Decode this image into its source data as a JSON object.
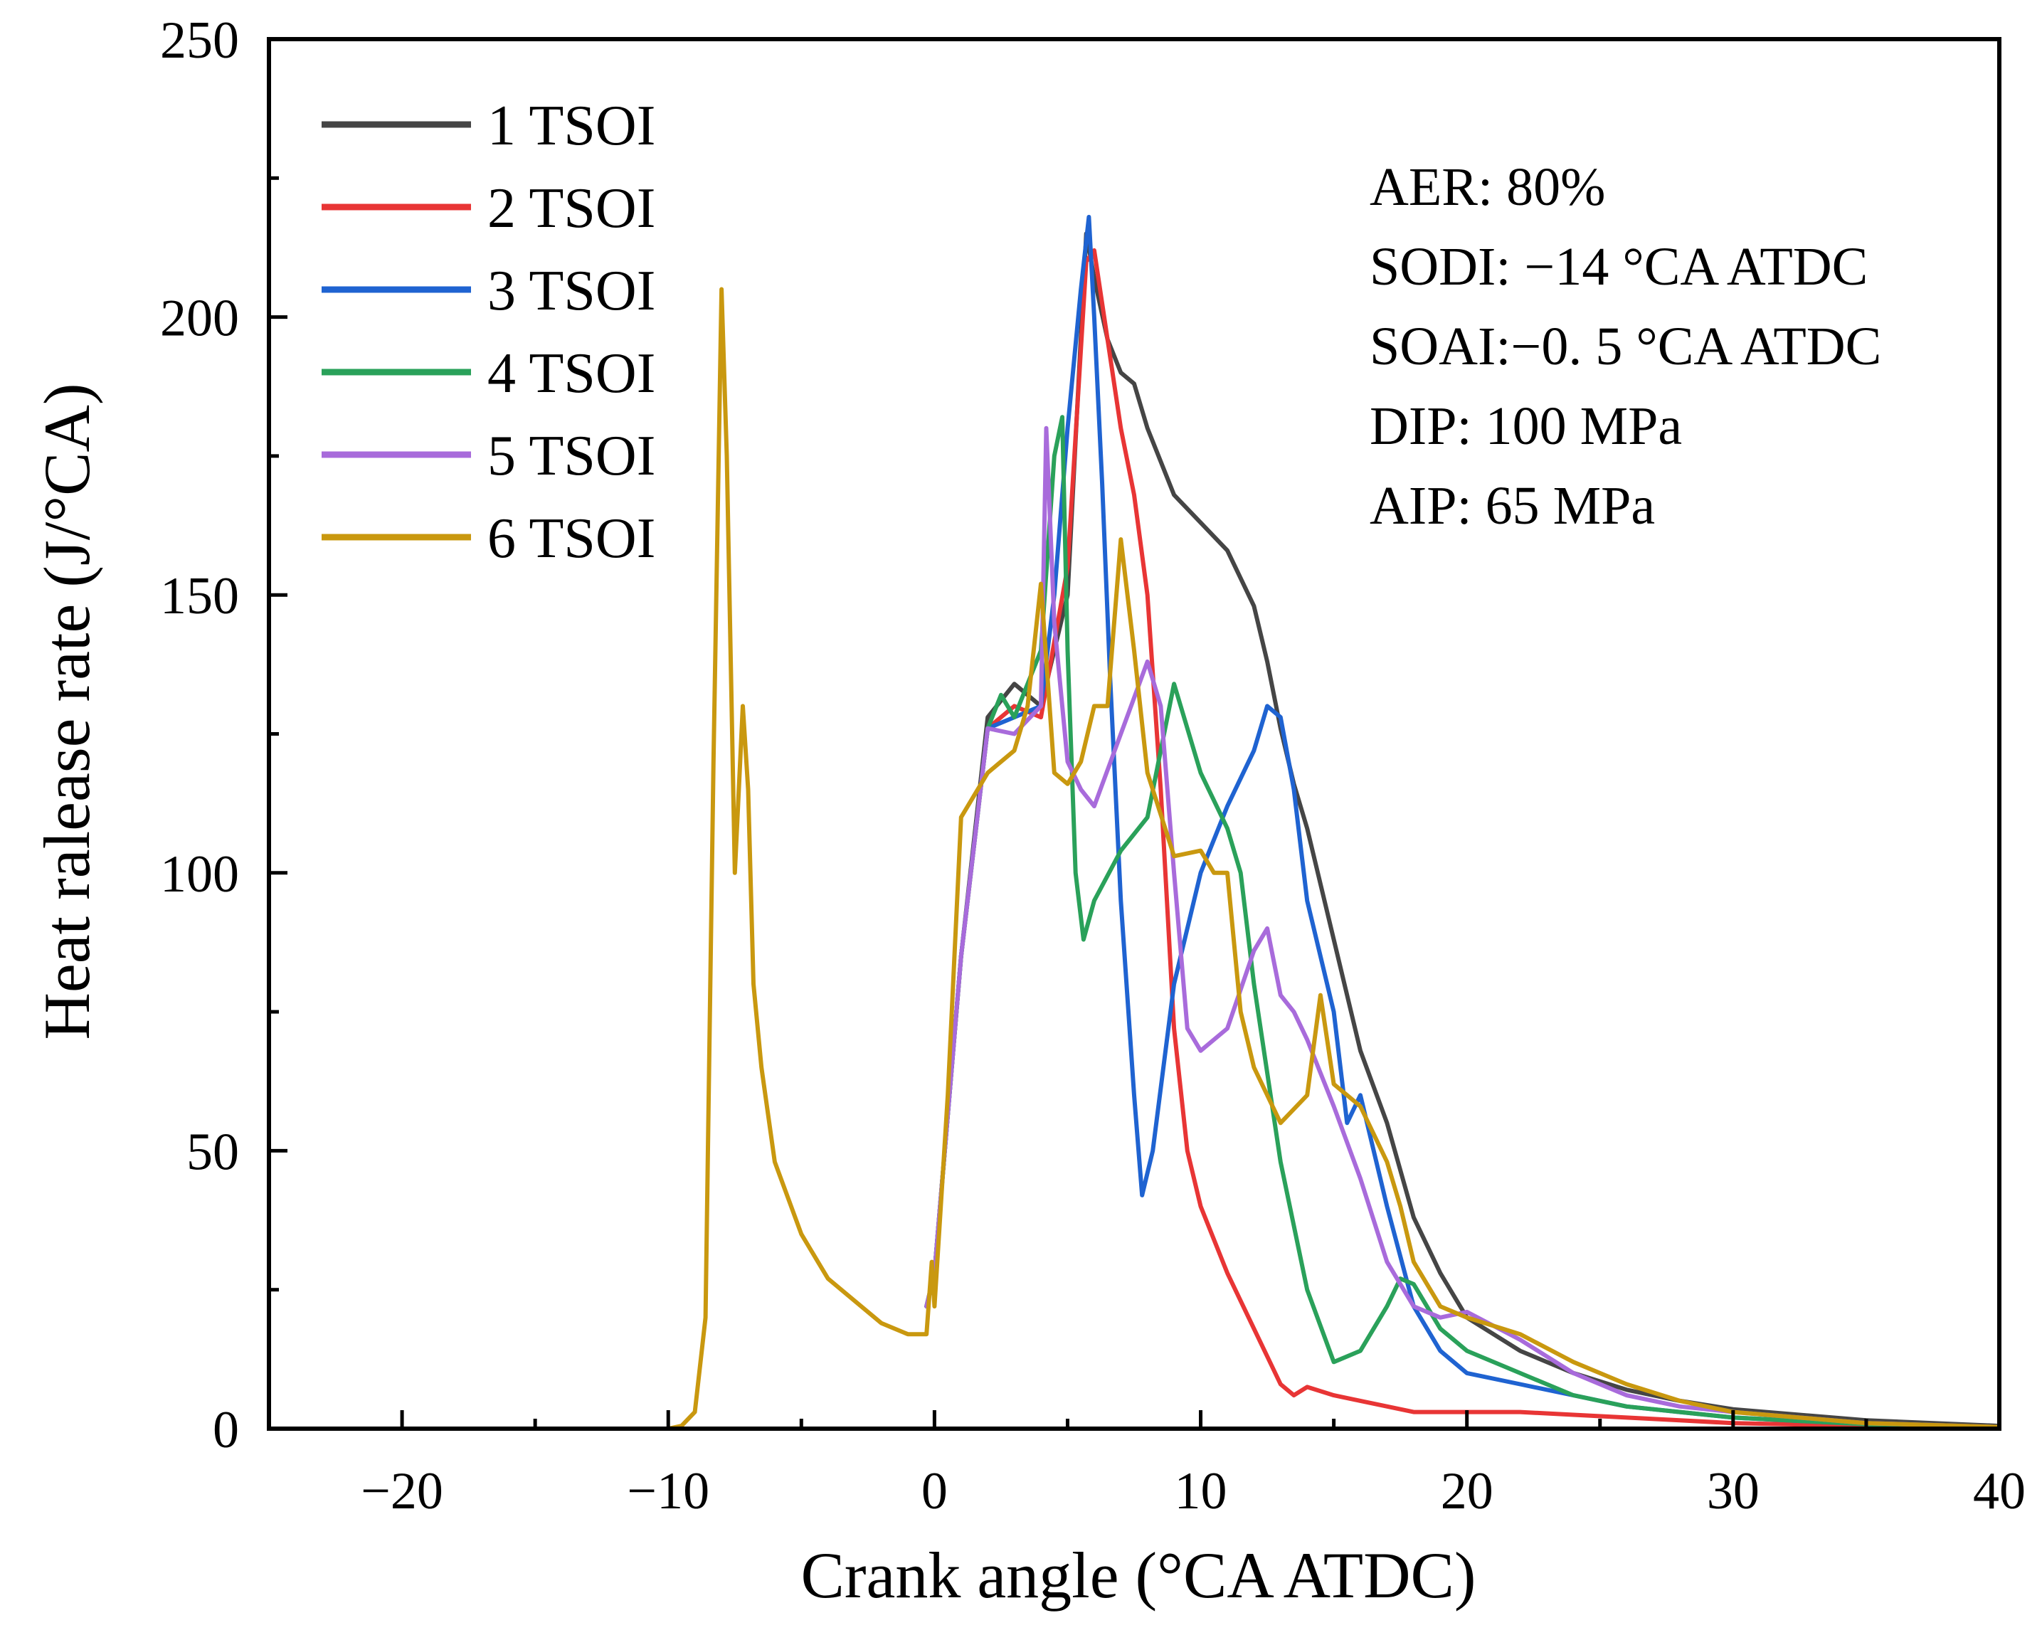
{
  "chart_data": {
    "type": "line",
    "xlabel": "Crank angle (°CA ATDC)",
    "ylabel": "Heat ralease rate (J/°CA)",
    "xlim": [
      -25,
      40
    ],
    "ylim": [
      0,
      250
    ],
    "xticks": [
      -20,
      -10,
      0,
      10,
      20,
      30,
      40
    ],
    "xtick_labels": [
      "−20",
      "−10",
      "0",
      "10",
      "20",
      "30",
      "40"
    ],
    "yticks": [
      0,
      50,
      100,
      150,
      200,
      250
    ],
    "ytick_labels": [
      "0",
      "50",
      "100",
      "150",
      "200",
      "250"
    ],
    "legend_position": "top-left",
    "annotations": [
      "AER: 80%",
      "SODI: −14 °CA ATDC",
      "SOAI:−0. 5 °CA ATDC",
      "DIP: 100 MPa",
      "AIP: 65 MPa"
    ],
    "series": [
      {
        "name": "1 TSOI",
        "color": "#454545",
        "x": [
          -0.3,
          0,
          1,
          2,
          3,
          4,
          5,
          5.7,
          6,
          6.5,
          7,
          7.5,
          8,
          9,
          10,
          11,
          12,
          12.5,
          13,
          13.5,
          14,
          15,
          16,
          17,
          18,
          19,
          20,
          22,
          24,
          26,
          28,
          30,
          35,
          40
        ],
        "y": [
          22,
          28,
          85,
          128,
          134,
          130,
          150,
          215,
          207,
          196,
          190,
          188,
          180,
          168,
          163,
          158,
          148,
          138,
          126,
          116,
          108,
          88,
          68,
          55,
          38,
          28,
          20,
          14,
          10,
          7,
          5,
          3.5,
          1.5,
          0.5
        ]
      },
      {
        "name": "2 TSOI",
        "color": "#e83535",
        "x": [
          -0.3,
          0,
          1,
          2,
          3,
          4,
          5,
          5.7,
          6,
          6.5,
          7,
          7.5,
          8,
          8.5,
          9,
          9.5,
          10,
          11,
          12,
          13,
          13.5,
          14,
          15,
          16,
          18,
          20,
          22,
          24,
          26,
          28,
          30,
          35,
          40
        ],
        "y": [
          22,
          28,
          85,
          126,
          130,
          128,
          155,
          210,
          212,
          196,
          180,
          168,
          150,
          115,
          72,
          50,
          40,
          28,
          18,
          8,
          6,
          7.5,
          6,
          5,
          3,
          3,
          3,
          2.5,
          2,
          1.5,
          1,
          0.5,
          0.2
        ]
      },
      {
        "name": "3 TSOI",
        "color": "#1f63d1",
        "x": [
          -0.3,
          0,
          1,
          2,
          3,
          4,
          4.5,
          5,
          5.5,
          5.8,
          6,
          6.3,
          6.6,
          7,
          7.5,
          7.8,
          8.2,
          9,
          10,
          11,
          12,
          12.5,
          13,
          13.5,
          14,
          15,
          15.5,
          16,
          17,
          18,
          19,
          20,
          22,
          24,
          26,
          28,
          30,
          35,
          40
        ],
        "y": [
          22,
          28,
          85,
          126,
          128,
          130,
          150,
          180,
          205,
          218,
          200,
          170,
          135,
          95,
          60,
          42,
          50,
          80,
          100,
          112,
          122,
          130,
          128,
          115,
          95,
          75,
          55,
          60,
          40,
          22,
          14,
          10,
          8,
          6,
          4,
          3,
          2,
          0.8,
          0.3
        ]
      },
      {
        "name": "4 TSOI",
        "color": "#2aa15a",
        "x": [
          -0.3,
          0,
          1,
          2,
          2.5,
          3,
          4,
          4.5,
          4.8,
          5,
          5.3,
          5.6,
          6,
          7,
          8,
          9,
          10,
          11,
          11.5,
          12,
          13,
          14,
          15,
          16,
          17,
          17.5,
          18,
          19,
          20,
          22,
          24,
          26,
          28,
          30,
          35,
          40
        ],
        "y": [
          22,
          28,
          85,
          126,
          132,
          128,
          140,
          175,
          182,
          140,
          100,
          88,
          95,
          104,
          110,
          134,
          118,
          108,
          100,
          80,
          48,
          25,
          12,
          14,
          22,
          27,
          26,
          18,
          14,
          10,
          6,
          4,
          3,
          2,
          0.8,
          0.3
        ]
      },
      {
        "name": "5 TSOI",
        "color": "#a86bdb",
        "x": [
          -0.3,
          0,
          1,
          2,
          3,
          4,
          4.2,
          4.5,
          5,
          5.5,
          6,
          7,
          8,
          8.5,
          9,
          9.5,
          10,
          11,
          12,
          12.5,
          13,
          13.5,
          14,
          15,
          16,
          17,
          18,
          19,
          20,
          22,
          24,
          26,
          28,
          30,
          35,
          40
        ],
        "y": [
          22,
          28,
          85,
          126,
          125,
          130,
          180,
          145,
          120,
          115,
          112,
          125,
          138,
          130,
          100,
          72,
          68,
          72,
          86,
          90,
          78,
          75,
          70,
          58,
          45,
          30,
          22,
          20,
          21,
          16,
          10,
          6,
          4,
          3,
          1,
          0.3
        ]
      },
      {
        "name": "6 TSOI",
        "color": "#c9980f",
        "x": [
          -25,
          -10,
          -9.5,
          -9,
          -8.6,
          -8.3,
          -8,
          -7.8,
          -7.5,
          -7.2,
          -7,
          -6.8,
          -6.5,
          -6,
          -5,
          -4,
          -3,
          -2,
          -1,
          -0.3,
          -0.1,
          0,
          0.5,
          1,
          2,
          3,
          3.5,
          4,
          4.5,
          5,
          5.5,
          6,
          6.5,
          7,
          7.5,
          8,
          9,
          10,
          10.5,
          11,
          11.5,
          12,
          13,
          14,
          14.5,
          15,
          16,
          17,
          17.5,
          18,
          19,
          20,
          22,
          24,
          26,
          28,
          30,
          35,
          40
        ],
        "y": [
          0,
          0,
          0.5,
          3,
          20,
          120,
          205,
          175,
          100,
          130,
          115,
          80,
          65,
          48,
          35,
          27,
          23,
          19,
          17,
          17,
          30,
          22,
          60,
          110,
          118,
          122,
          130,
          152,
          118,
          116,
          120,
          130,
          130,
          160,
          140,
          118,
          103,
          104,
          100,
          100,
          75,
          65,
          55,
          60,
          78,
          62,
          58,
          48,
          40,
          30,
          22,
          20,
          17,
          12,
          8,
          5,
          3,
          1,
          0.3
        ]
      }
    ]
  }
}
